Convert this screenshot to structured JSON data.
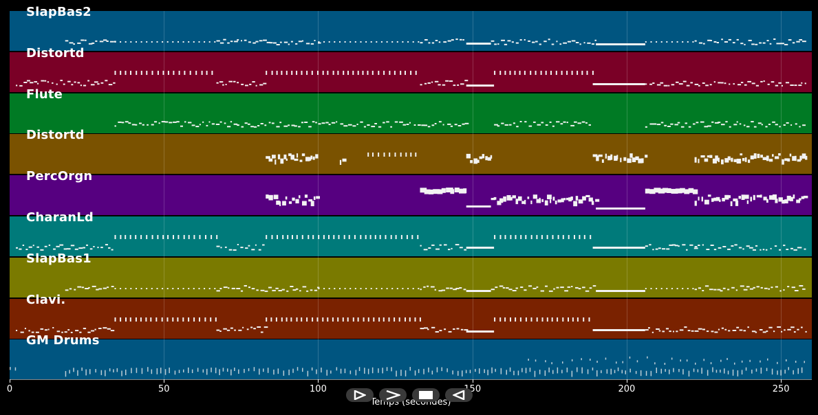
{
  "tracks": [
    {
      "name": "SlapBas2",
      "color": "#005580",
      "pattern": "bass"
    },
    {
      "name": "Distortd",
      "color": "#7a0026",
      "pattern": "lead"
    },
    {
      "name": "Flute",
      "color": "#007a24",
      "pattern": "flute"
    },
    {
      "name": "Distortd",
      "color": "#7a5200",
      "pattern": "guitar"
    },
    {
      "name": "PercOrgn",
      "color": "#560080",
      "pattern": "organ"
    },
    {
      "name": "CharanLd",
      "color": "#007a7a",
      "pattern": "lead"
    },
    {
      "name": "SlapBas1",
      "color": "#7a7a00",
      "pattern": "bass"
    },
    {
      "name": "Clavi.",
      "color": "#7a2200",
      "pattern": "lead"
    },
    {
      "name": "GM Drums",
      "color": "#005580",
      "pattern": "drums"
    }
  ],
  "axis": {
    "min": 0,
    "max": 260,
    "ticks": [
      0,
      50,
      100,
      150,
      200,
      250
    ],
    "title": "Temps (secondes)"
  },
  "controls": [
    {
      "name": "play-outline-button",
      "icon": "play-outline-icon"
    },
    {
      "name": "forward-button",
      "icon": "chevron-right-icon"
    },
    {
      "name": "stop-button",
      "icon": "stop-icon"
    },
    {
      "name": "rewind-button",
      "icon": "play-left-outline-icon"
    }
  ]
}
